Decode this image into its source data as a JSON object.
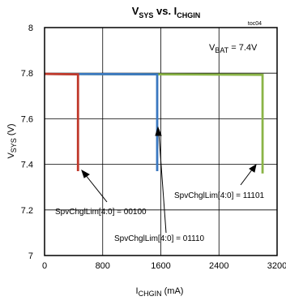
{
  "chart_data": {
    "type": "line",
    "title": {
      "main": "V",
      "sub1": "SYS",
      "mid": " vs. I",
      "sub2": "CHGIN"
    },
    "toc": "toc04",
    "xlabel": {
      "main": "I",
      "sub": "CHGIN",
      "unit": " (mA)"
    },
    "ylabel": {
      "main": "V",
      "sub": "SYS",
      "unit": " (V)"
    },
    "xlim": [
      0,
      3200
    ],
    "ylim": [
      7.0,
      8.0
    ],
    "xticks": [
      0,
      800,
      1600,
      2400,
      3200
    ],
    "xtick_labels": [
      "0",
      "800",
      "1600",
      "2400",
      "3200"
    ],
    "yticks": [
      7.0,
      7.2,
      7.4,
      7.6,
      7.8,
      8.0
    ],
    "ytick_labels": [
      "7",
      "7.2",
      "7.4",
      "7.6",
      "7.8",
      "8"
    ],
    "grid": true,
    "condition": {
      "main": "V",
      "sub": "BAT",
      "rest": " = 7.4V"
    },
    "series": [
      {
        "color": "#c0392b",
        "x": [
          0,
          460,
          460
        ],
        "y": [
          7.797,
          7.795,
          7.37
        ]
      },
      {
        "color": "#3a78c0",
        "x": [
          0,
          1550,
          1550
        ],
        "y": [
          7.797,
          7.795,
          7.37
        ]
      },
      {
        "color": "#8ab446",
        "x": [
          0,
          3000,
          3000
        ],
        "y": [
          7.797,
          7.793,
          7.36
        ]
      }
    ],
    "annotations": [
      {
        "text": "SpvChglLim[4:0] = 00100"
      },
      {
        "text": "SpvChglLim[4:0] = 01110"
      },
      {
        "text": "SpvChglLim[4:0] = 11101"
      }
    ]
  }
}
